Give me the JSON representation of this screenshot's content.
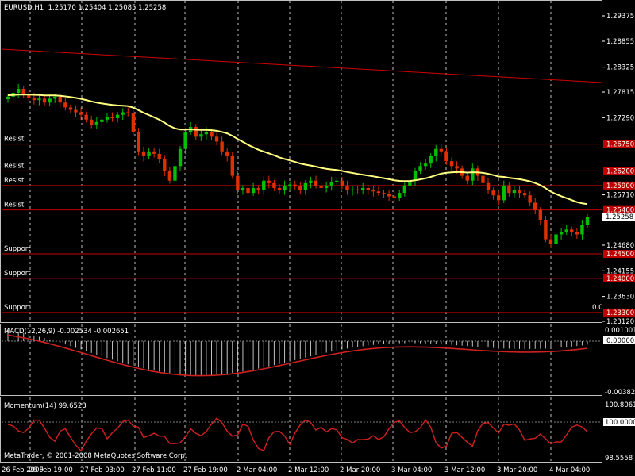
{
  "header": {
    "symbol_tf": "EURUSD,H1",
    "ohlc": "1.25170 1.25404 1.25085 1.25258"
  },
  "copyright": "MetaTrader, © 2001-2008 MetaQuotes Software Corp.",
  "main_axis": {
    "labels": [
      "1.29375",
      "1.28855",
      "1.28325",
      "1.27815",
      "1.27290",
      "1.25710",
      "1.24680",
      "1.24155",
      "1.23630",
      "1.23120"
    ],
    "current_price": "1.25258"
  },
  "levels": [
    {
      "label": "Resist",
      "price": "1.26750",
      "tag": "1.26750"
    },
    {
      "label": "Resist",
      "price": "1.26200",
      "tag": "1.26200"
    },
    {
      "label": "Resist",
      "price": "1.25900",
      "tag": "1.25900"
    },
    {
      "label": "Resist",
      "price": "1.25400",
      "tag": "1.25400"
    },
    {
      "label": "Support",
      "price": "1.24500",
      "tag": "1.24500"
    },
    {
      "label": "Support",
      "price": "1.24000",
      "tag": "1.24000"
    },
    {
      "label": "Support",
      "price": "1.23300",
      "tag": "1.23300"
    }
  ],
  "tag_zero": "0.0",
  "macd": {
    "title": "MACD(12,26,9) -0.002534 -0.002651",
    "top": "0.001001",
    "zero": "0.00000",
    "bottom": "-0.00382"
  },
  "momentum": {
    "title": "Momentum(14) 99.6523",
    "top": "100.8061",
    "mid": "100.0000",
    "bottom": "98.5558"
  },
  "time_axis": [
    "26 Feb 2009",
    "26 Feb 19:00",
    "27 Feb 03:00",
    "27 Feb 11:00",
    "27 Feb 19:00",
    "2 Mar 04:00",
    "2 Mar 12:00",
    "2 Mar 20:00",
    "3 Mar 04:00",
    "3 Mar 12:00",
    "3 Mar 20:00",
    "4 Mar 04:00"
  ],
  "colors": {
    "bull": "#00c000",
    "bear": "#e03000",
    "ma": "#ffff80",
    "level": "#c00000",
    "trend": "#d00000",
    "grid": "#c0c0c0"
  },
  "chart_data": {
    "type": "candlestick",
    "series_close": [
      1.2772,
      1.278,
      1.2788,
      1.2775,
      1.277,
      1.2765,
      1.2768,
      1.276,
      1.2768,
      1.2772,
      1.276,
      1.275,
      1.2745,
      1.274,
      1.2735,
      1.2725,
      1.2715,
      1.272,
      1.2725,
      1.273,
      1.2728,
      1.2735,
      1.274,
      1.2738,
      1.27,
      1.266,
      1.265,
      1.266,
      1.2655,
      1.2645,
      1.262,
      1.26,
      1.263,
      1.2665,
      1.27,
      1.271,
      1.269,
      1.2695,
      1.27,
      1.269,
      1.268,
      1.266,
      1.265,
      1.261,
      1.258,
      1.2585,
      1.2575,
      1.2585,
      1.258,
      1.26,
      1.2595,
      1.2585,
      1.258,
      1.259,
      1.2592,
      1.2588,
      1.258,
      1.2595,
      1.26,
      1.259,
      1.2585,
      1.259,
      1.2598,
      1.26,
      1.259,
      1.258,
      1.2582,
      1.258,
      1.2585,
      1.258,
      1.2578,
      1.2575,
      1.2572,
      1.2568,
      1.2565,
      1.2575,
      1.259,
      1.26,
      1.262,
      1.263,
      1.2635,
      1.265,
      1.2665,
      1.266,
      1.264,
      1.263,
      1.2625,
      1.261,
      1.26,
      1.2625,
      1.261,
      1.2595,
      1.258,
      1.257,
      1.256,
      1.259,
      1.2575,
      1.258,
      1.2575,
      1.257,
      1.2555,
      1.254,
      1.252,
      1.248,
      1.247,
      1.249,
      1.2495,
      1.25,
      1.2495,
      1.249,
      1.251,
      1.2526
    ]
  }
}
